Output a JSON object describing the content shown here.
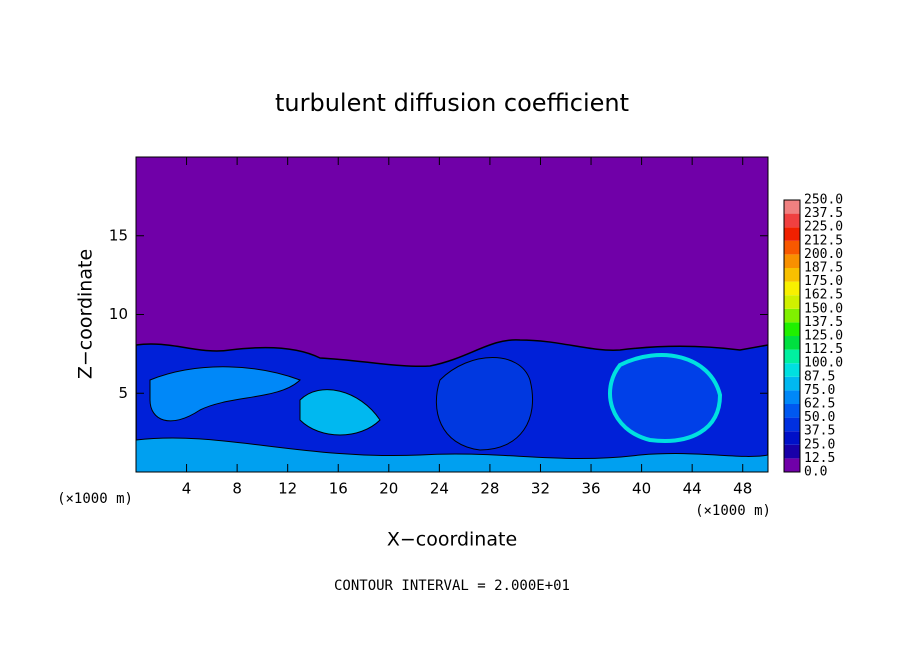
{
  "chart_data": {
    "type": "contour",
    "title": "turbulent diffusion coefficient",
    "xlabel": "X−coordinate",
    "ylabel": "Z−coordinate",
    "xunit_labels": [
      "(×1000 m)",
      "(×1000 m)"
    ],
    "footnote": "CONTOUR INTERVAL = 2.000E+01",
    "xlim": [
      0,
      50
    ],
    "ylim": [
      0,
      20
    ],
    "xticks": [
      4,
      8,
      12,
      16,
      20,
      24,
      28,
      32,
      36,
      40,
      44,
      48
    ],
    "yticks": [
      5,
      10,
      15
    ],
    "colorbar": {
      "levels": [
        {
          "value": 0,
          "label": "0.0"
        },
        12.5,
        {
          "value": 25,
          "label": "25.0"
        },
        37.5,
        {
          "value": 50,
          "label": "50.0"
        },
        62.5,
        {
          "value": 75,
          "label": "75.0"
        },
        87.5,
        {
          "value": 100,
          "label": "100.0"
        },
        112.5,
        {
          "value": 125,
          "label": "125.0"
        },
        137.5,
        {
          "value": 150,
          "label": "150.0"
        },
        162.5,
        {
          "value": 175,
          "label": "175.0"
        },
        187.5,
        {
          "value": 200,
          "label": "200.0"
        },
        212.5,
        {
          "value": 225,
          "label": "225.0"
        },
        237.5,
        {
          "value": 250,
          "label": "250.0"
        }
      ],
      "colors": [
        "#7000a8",
        "#1800a8",
        "#0010c8",
        "#0030e0",
        "#0058f0",
        "#0088f8",
        "#00b8f0",
        "#00e0e0",
        "#00f0a0",
        "#00e040",
        "#20f000",
        "#80f000",
        "#d0f000",
        "#f8f000",
        "#f8c000",
        "#f89000",
        "#f85800",
        "#f02000",
        "#f04040",
        "#f08080"
      ]
    }
  }
}
